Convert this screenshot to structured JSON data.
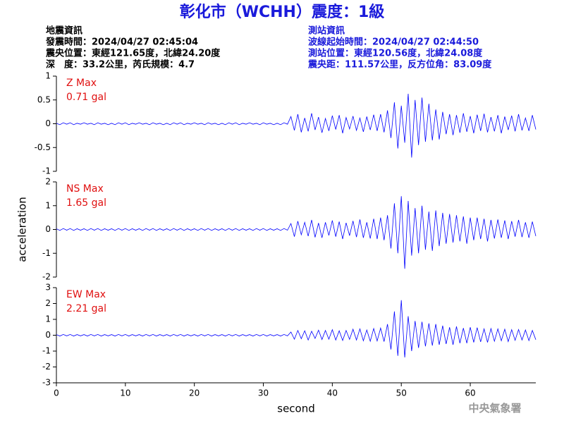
{
  "header": {
    "title": "彰化市（WCHH）震度：1級",
    "left": [
      "地震資訊",
      "發震時間：2024/04/27 02:45:04",
      "震央位置：東經121.65度，北緯24.20度",
      "深　度：33.2公里，芮氏規模：4.7"
    ],
    "right": [
      "測站資訊",
      "波線起始時間：2024/04/27 02:44:50",
      "測站位置：東經120.56度，北緯24.08度",
      "震央距：111.57公里，反方位角：83.09度"
    ]
  },
  "footer": "中央氣象署",
  "chart_data": [
    {
      "type": "line",
      "labels": [
        "Z Max",
        "0.71 gal"
      ],
      "color": "#0000ff",
      "xlim": [
        0,
        69.5
      ],
      "ylim": [
        -1,
        1
      ],
      "yticks": [
        -1,
        -0.5,
        0,
        0.5,
        1
      ],
      "x": [
        0,
        0.5,
        1,
        1.5,
        2,
        2.5,
        3,
        3.5,
        4,
        4.5,
        5,
        5.5,
        6,
        6.5,
        7,
        7.5,
        8,
        8.5,
        9,
        9.5,
        10,
        10.5,
        11,
        11.5,
        12,
        12.5,
        13,
        13.5,
        14,
        14.5,
        15,
        15.5,
        16,
        16.5,
        17,
        17.5,
        18,
        18.5,
        19,
        19.5,
        20,
        20.5,
        21,
        21.5,
        22,
        22.5,
        23,
        23.5,
        24,
        24.5,
        25,
        25.5,
        26,
        26.5,
        27,
        27.5,
        28,
        28.5,
        29,
        29.5,
        30,
        30.5,
        31,
        31.5,
        32,
        32.5,
        33,
        33.5,
        34,
        34.5,
        35,
        35.5,
        36,
        36.5,
        37,
        37.5,
        38,
        38.5,
        39,
        39.5,
        40,
        40.5,
        41,
        41.5,
        42,
        42.5,
        43,
        43.5,
        44,
        44.5,
        45,
        45.5,
        46,
        46.5,
        47,
        47.5,
        48,
        48.5,
        49,
        49.5,
        50,
        50.5,
        51,
        51.5,
        52,
        52.5,
        53,
        53.5,
        54,
        54.5,
        55,
        55.5,
        56,
        56.5,
        57,
        57.5,
        58,
        58.5,
        59,
        59.5,
        60,
        60.5,
        61,
        61.5,
        62,
        62.5,
        63,
        63.5,
        64,
        64.5,
        65,
        65.5,
        66,
        66.5,
        67,
        67.5,
        68,
        68.5,
        69,
        69.5
      ],
      "values": [
        0.01,
        -0.02,
        0.02,
        -0.01,
        0.02,
        -0.02,
        0.01,
        -0.01,
        0.02,
        -0.01,
        0.01,
        -0.02,
        0.02,
        -0.01,
        0.01,
        -0.02,
        0.01,
        -0.02,
        0.02,
        -0.01,
        0.02,
        -0.02,
        0.01,
        -0.01,
        0.02,
        -0.01,
        0.01,
        -0.02,
        0.02,
        -0.01,
        0.01,
        -0.02,
        0.01,
        -0.02,
        0.02,
        -0.01,
        0.02,
        -0.02,
        0.01,
        -0.01,
        0.02,
        -0.01,
        0.01,
        -0.02,
        0.02,
        -0.01,
        0.01,
        -0.02,
        0.01,
        -0.02,
        0.02,
        -0.01,
        0.02,
        -0.02,
        0.01,
        -0.01,
        0.02,
        -0.01,
        0.01,
        -0.02,
        0.02,
        -0.01,
        0.01,
        -0.02,
        0.01,
        -0.02,
        0.02,
        -0.01,
        0.15,
        -0.14,
        0.2,
        -0.18,
        0.12,
        -0.16,
        0.22,
        -0.13,
        0.14,
        -0.19,
        0.11,
        -0.15,
        0.17,
        -0.12,
        0.18,
        -0.2,
        0.13,
        -0.11,
        0.16,
        -0.14,
        0.12,
        -0.17,
        0.15,
        -0.13,
        0.19,
        -0.15,
        0.2,
        -0.18,
        0.28,
        -0.3,
        0.45,
        -0.52,
        0.38,
        -0.4,
        0.63,
        -0.71,
        0.5,
        -0.45,
        0.55,
        -0.38,
        0.42,
        -0.35,
        0.3,
        -0.33,
        0.25,
        -0.22,
        0.2,
        -0.24,
        0.18,
        -0.19,
        0.22,
        -0.17,
        0.16,
        -0.2,
        0.19,
        -0.15,
        0.21,
        -0.18,
        0.14,
        -0.16,
        0.18,
        -0.2,
        0.15,
        -0.13,
        0.17,
        -0.16,
        0.2,
        -0.14,
        0.12,
        -0.15,
        0.18,
        -0.12
      ]
    },
    {
      "type": "line",
      "labels": [
        "NS Max",
        "1.65 gal"
      ],
      "color": "#0000ff",
      "xlim": [
        0,
        69.5
      ],
      "ylim": [
        -2,
        2
      ],
      "yticks": [
        -2,
        -1,
        0,
        1,
        2
      ],
      "ylabel": "acceleration",
      "x": [
        0,
        0.5,
        1,
        1.5,
        2,
        2.5,
        3,
        3.5,
        4,
        4.5,
        5,
        5.5,
        6,
        6.5,
        7,
        7.5,
        8,
        8.5,
        9,
        9.5,
        10,
        10.5,
        11,
        11.5,
        12,
        12.5,
        13,
        13.5,
        14,
        14.5,
        15,
        15.5,
        16,
        16.5,
        17,
        17.5,
        18,
        18.5,
        19,
        19.5,
        20,
        20.5,
        21,
        21.5,
        22,
        22.5,
        23,
        23.5,
        24,
        24.5,
        25,
        25.5,
        26,
        26.5,
        27,
        27.5,
        28,
        28.5,
        29,
        29.5,
        30,
        30.5,
        31,
        31.5,
        32,
        32.5,
        33,
        33.5,
        34,
        34.5,
        35,
        35.5,
        36,
        36.5,
        37,
        37.5,
        38,
        38.5,
        39,
        39.5,
        40,
        40.5,
        41,
        41.5,
        42,
        42.5,
        43,
        43.5,
        44,
        44.5,
        45,
        45.5,
        46,
        46.5,
        47,
        47.5,
        48,
        48.5,
        49,
        49.5,
        50,
        50.5,
        51,
        51.5,
        52,
        52.5,
        53,
        53.5,
        54,
        54.5,
        55,
        55.5,
        56,
        56.5,
        57,
        57.5,
        58,
        58.5,
        59,
        59.5,
        60,
        60.5,
        61,
        61.5,
        62,
        62.5,
        63,
        63.5,
        64,
        64.5,
        65,
        65.5,
        66,
        66.5,
        67,
        67.5,
        68,
        68.5,
        69,
        69.5
      ],
      "values": [
        0.03,
        -0.04,
        0.04,
        -0.03,
        0.04,
        -0.04,
        0.03,
        -0.03,
        0.03,
        -0.04,
        0.04,
        -0.03,
        0.04,
        -0.04,
        0.03,
        -0.03,
        0.03,
        -0.04,
        0.04,
        -0.03,
        0.04,
        -0.04,
        0.03,
        -0.03,
        0.03,
        -0.04,
        0.04,
        -0.03,
        0.04,
        -0.04,
        0.03,
        -0.03,
        0.03,
        -0.04,
        0.04,
        -0.03,
        0.04,
        -0.04,
        0.03,
        -0.03,
        0.03,
        -0.04,
        0.04,
        -0.03,
        0.04,
        -0.04,
        0.03,
        -0.03,
        0.03,
        -0.04,
        0.04,
        -0.03,
        0.04,
        -0.04,
        0.03,
        -0.03,
        0.03,
        -0.04,
        0.04,
        -0.03,
        0.04,
        -0.04,
        0.03,
        -0.03,
        0.03,
        -0.04,
        0.04,
        -0.03,
        0.25,
        -0.3,
        0.35,
        -0.22,
        0.3,
        -0.28,
        0.4,
        -0.33,
        0.27,
        -0.35,
        0.3,
        -0.25,
        0.38,
        -0.3,
        0.33,
        -0.4,
        0.28,
        -0.26,
        0.36,
        -0.32,
        0.42,
        -0.35,
        0.3,
        -0.38,
        0.45,
        -0.4,
        0.5,
        -0.45,
        0.6,
        -0.8,
        1.1,
        -1.0,
        1.4,
        -1.65,
        1.2,
        -1.1,
        0.9,
        -1.0,
        1.0,
        -0.85,
        0.75,
        -0.9,
        0.8,
        -0.7,
        0.7,
        -0.6,
        0.65,
        -0.55,
        0.6,
        -0.5,
        0.55,
        -0.6,
        0.5,
        -0.45,
        0.5,
        -0.4,
        0.45,
        -0.5,
        0.4,
        -0.38,
        0.42,
        -0.35,
        0.38,
        -0.4,
        0.35,
        -0.3,
        0.4,
        -0.32,
        0.3,
        -0.35,
        0.33,
        -0.28
      ]
    },
    {
      "type": "line",
      "labels": [
        "EW Max",
        "2.21 gal"
      ],
      "color": "#0000ff",
      "xlim": [
        0,
        69.5
      ],
      "ylim": [
        -3,
        3
      ],
      "yticks": [
        -3,
        -2,
        -1,
        0,
        1,
        2,
        3
      ],
      "xticks": [
        0,
        10,
        20,
        30,
        40,
        50,
        60
      ],
      "xlabel": "second",
      "x": [
        0,
        0.5,
        1,
        1.5,
        2,
        2.5,
        3,
        3.5,
        4,
        4.5,
        5,
        5.5,
        6,
        6.5,
        7,
        7.5,
        8,
        8.5,
        9,
        9.5,
        10,
        10.5,
        11,
        11.5,
        12,
        12.5,
        13,
        13.5,
        14,
        14.5,
        15,
        15.5,
        16,
        16.5,
        17,
        17.5,
        18,
        18.5,
        19,
        19.5,
        20,
        20.5,
        21,
        21.5,
        22,
        22.5,
        23,
        23.5,
        24,
        24.5,
        25,
        25.5,
        26,
        26.5,
        27,
        27.5,
        28,
        28.5,
        29,
        29.5,
        30,
        30.5,
        31,
        31.5,
        32,
        32.5,
        33,
        33.5,
        34,
        34.5,
        35,
        35.5,
        36,
        36.5,
        37,
        37.5,
        38,
        38.5,
        39,
        39.5,
        40,
        40.5,
        41,
        41.5,
        42,
        42.5,
        43,
        43.5,
        44,
        44.5,
        45,
        45.5,
        46,
        46.5,
        47,
        47.5,
        48,
        48.5,
        49,
        49.5,
        50,
        50.5,
        51,
        51.5,
        52,
        52.5,
        53,
        53.5,
        54,
        54.5,
        55,
        55.5,
        56,
        56.5,
        57,
        57.5,
        58,
        58.5,
        59,
        59.5,
        60,
        60.5,
        61,
        61.5,
        62,
        62.5,
        63,
        63.5,
        64,
        64.5,
        65,
        65.5,
        66,
        66.5,
        67,
        67.5,
        68,
        68.5,
        69,
        69.5
      ],
      "values": [
        0.04,
        -0.05,
        0.05,
        -0.04,
        0.05,
        -0.05,
        0.04,
        -0.04,
        0.04,
        -0.05,
        0.05,
        -0.04,
        0.05,
        -0.05,
        0.04,
        -0.04,
        0.04,
        -0.05,
        0.05,
        -0.04,
        0.05,
        -0.05,
        0.04,
        -0.04,
        0.04,
        -0.05,
        0.05,
        -0.04,
        0.05,
        -0.05,
        0.04,
        -0.04,
        0.04,
        -0.05,
        0.05,
        -0.04,
        0.05,
        -0.05,
        0.04,
        -0.04,
        0.04,
        -0.05,
        0.05,
        -0.04,
        0.05,
        -0.05,
        0.04,
        -0.04,
        0.04,
        -0.05,
        0.05,
        -0.04,
        0.05,
        -0.05,
        0.04,
        -0.04,
        0.04,
        -0.05,
        0.05,
        -0.04,
        0.05,
        -0.05,
        0.04,
        -0.04,
        0.04,
        -0.05,
        0.05,
        -0.04,
        0.2,
        -0.25,
        0.3,
        -0.22,
        0.28,
        -0.3,
        0.25,
        -0.2,
        0.32,
        -0.27,
        0.3,
        -0.25,
        0.35,
        -0.3,
        0.28,
        -0.33,
        0.3,
        -0.26,
        0.38,
        -0.3,
        0.4,
        -0.35,
        0.33,
        -0.38,
        0.42,
        -0.36,
        0.45,
        -0.4,
        0.7,
        -0.9,
        1.5,
        -1.3,
        2.21,
        -1.4,
        1.2,
        -1.0,
        0.9,
        -0.8,
        0.85,
        -0.7,
        0.75,
        -0.65,
        0.7,
        -0.6,
        0.6,
        -0.55,
        0.5,
        -0.6,
        0.55,
        -0.5,
        0.45,
        -0.5,
        0.5,
        -0.45,
        0.48,
        -0.42,
        0.4,
        -0.45,
        0.42,
        -0.38,
        0.4,
        -0.35,
        0.38,
        -0.4,
        0.35,
        -0.32,
        0.36,
        -0.3,
        0.33,
        -0.34,
        0.3,
        -0.28
      ]
    }
  ]
}
